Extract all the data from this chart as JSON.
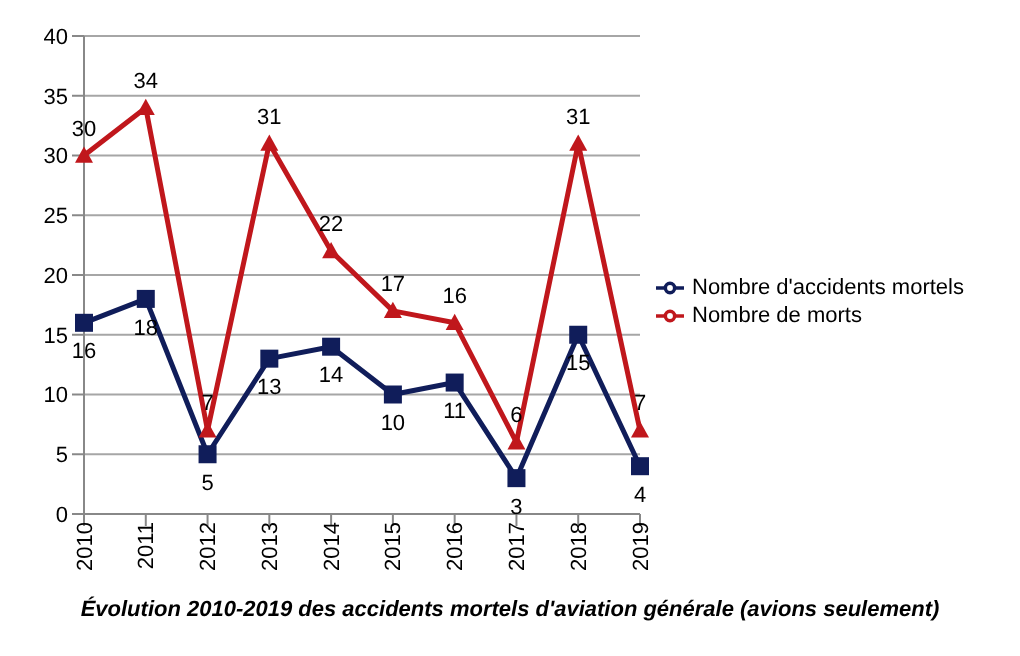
{
  "chart_data": {
    "type": "line",
    "title": "Évolution 2010-2019 des accidents mortels d'aviation générale (avions seulement)",
    "categories": [
      "2010",
      "2011",
      "2012",
      "2013",
      "2014",
      "2015",
      "2016",
      "2017",
      "2018",
      "2019"
    ],
    "series": [
      {
        "name": "Nombre de morts",
        "color": "#c0171c",
        "marker": "triangle",
        "values": [
          30,
          34,
          7,
          31,
          22,
          17,
          16,
          6,
          31,
          7
        ]
      },
      {
        "name": "Nombre d'accidents mortels",
        "color": "#101d5a",
        "marker": "square",
        "values": [
          16,
          18,
          5,
          13,
          14,
          10,
          11,
          3,
          15,
          4
        ]
      }
    ],
    "ylim": [
      0,
      40
    ],
    "yticks": [
      0,
      5,
      10,
      15,
      20,
      25,
      30,
      35,
      40
    ],
    "grid": "y",
    "legend": "right",
    "data_labels": true
  }
}
